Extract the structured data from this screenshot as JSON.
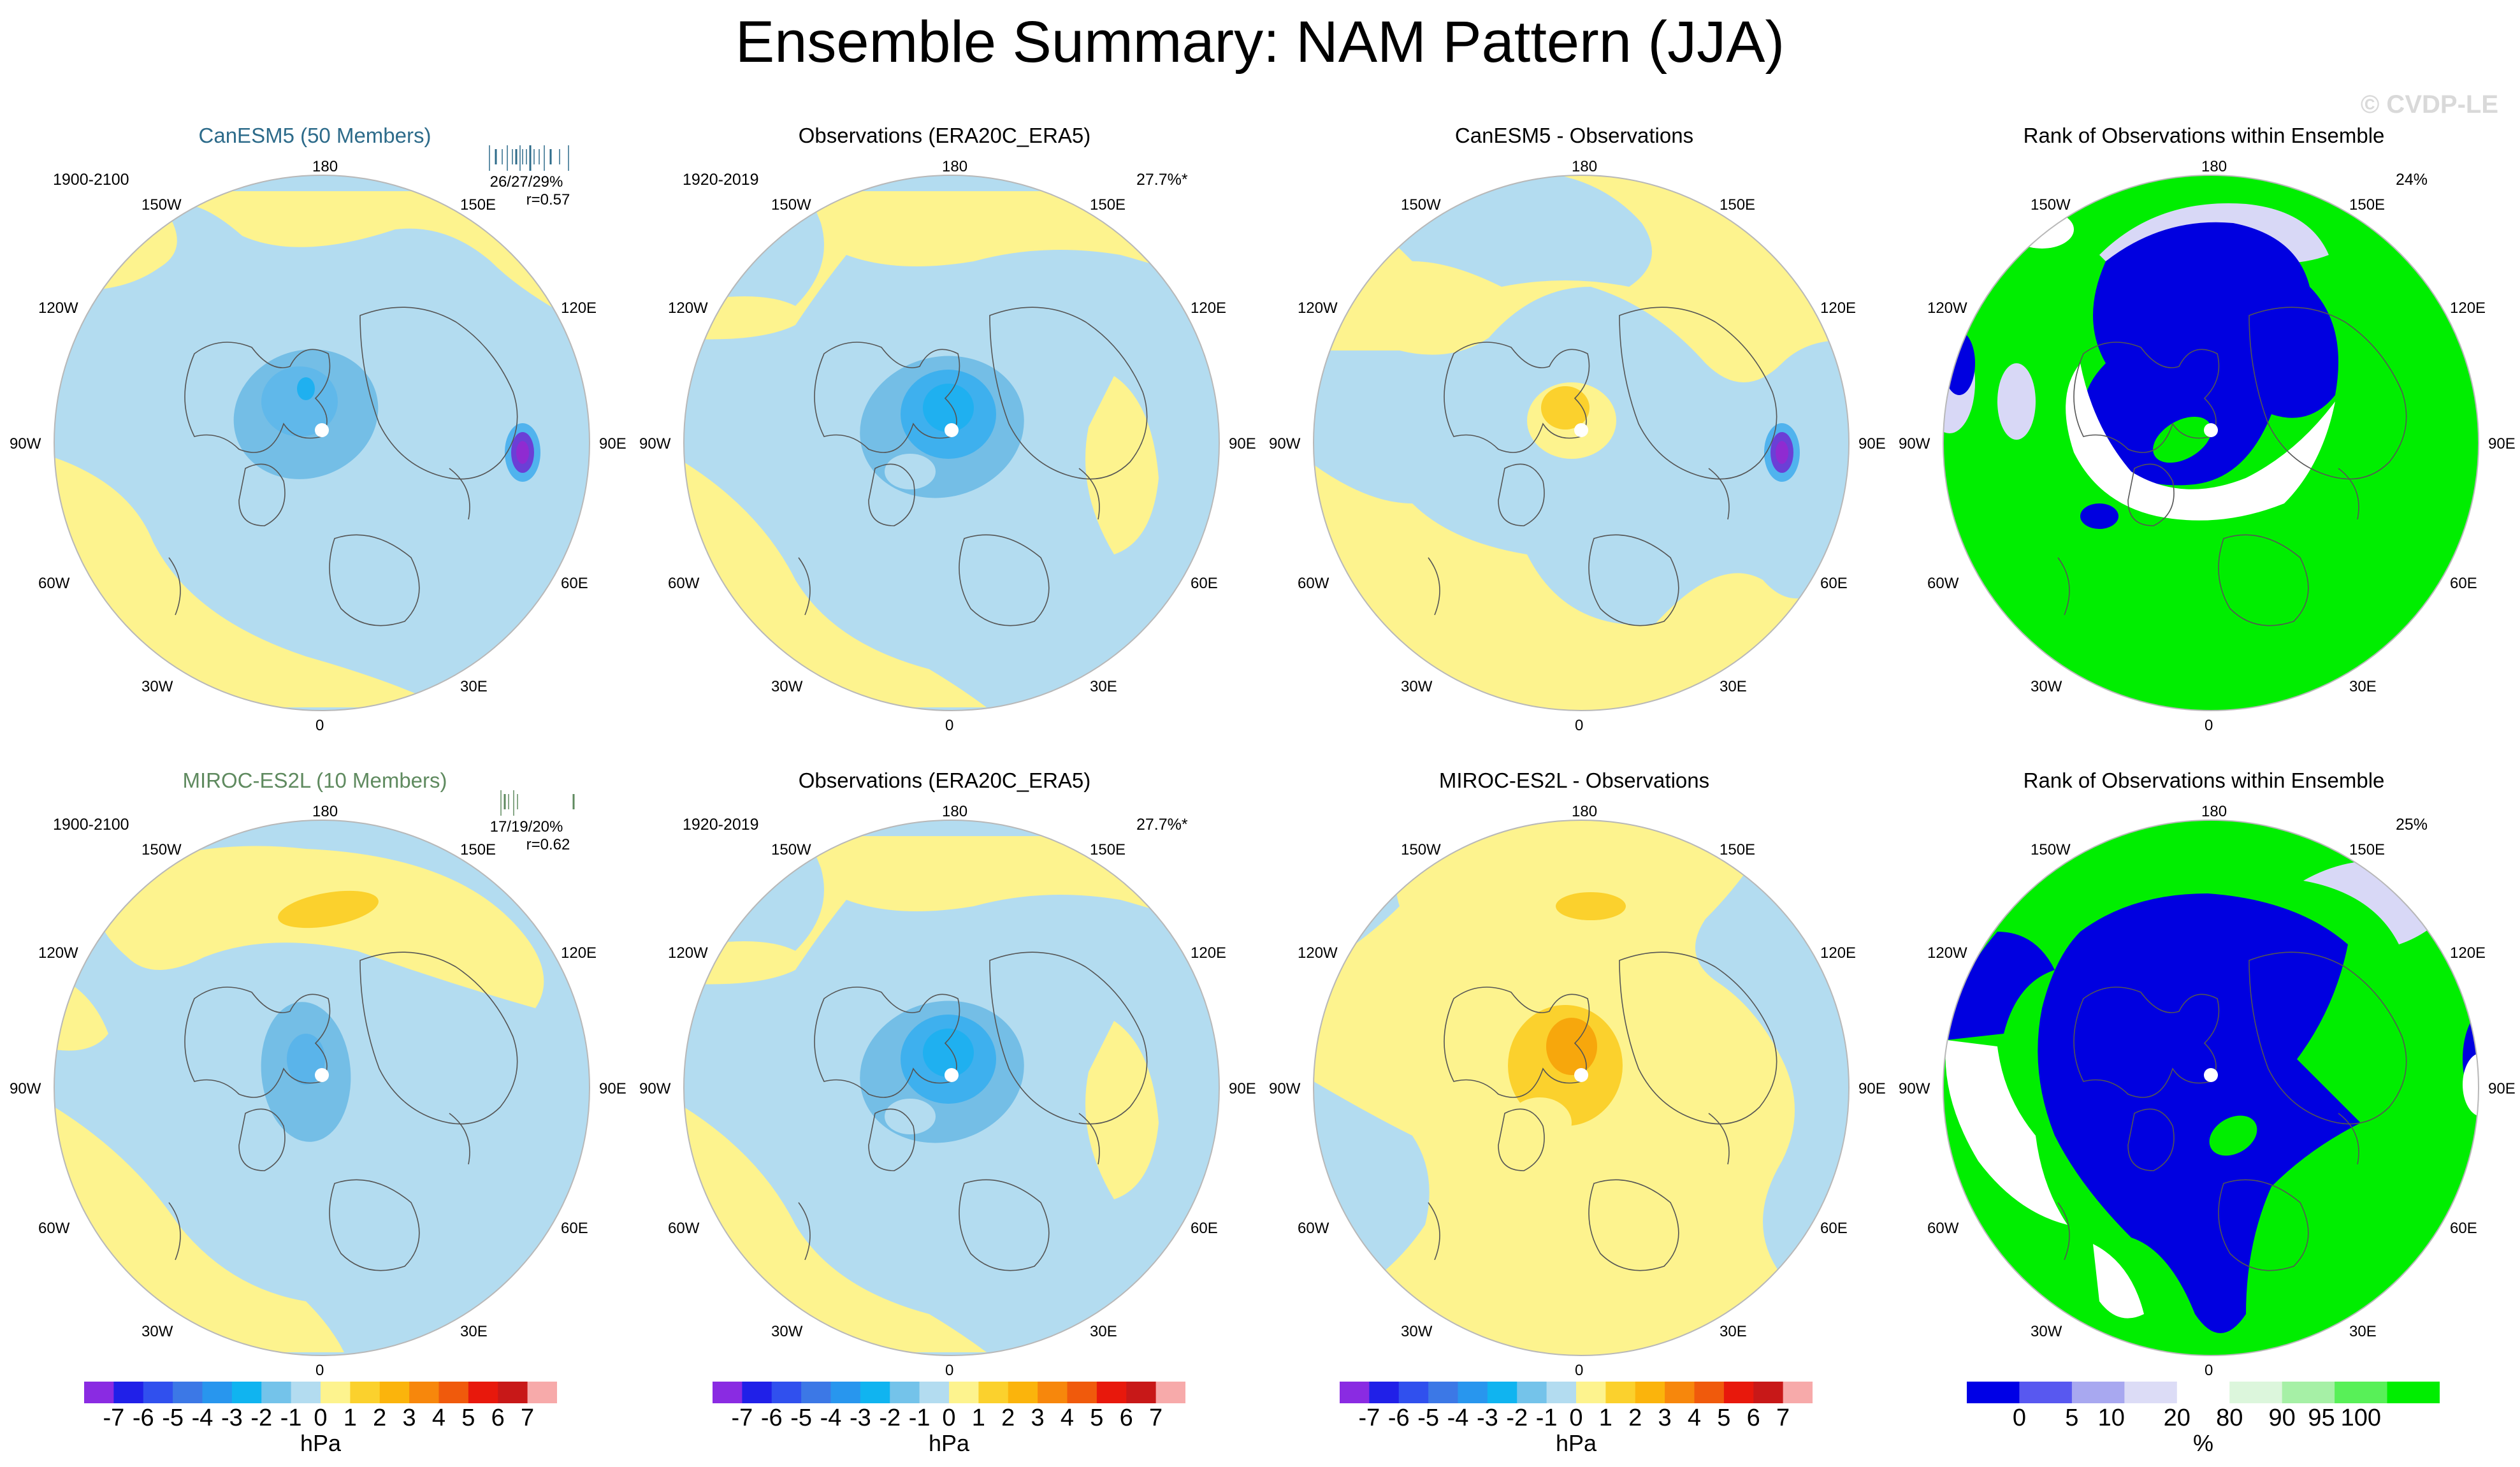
{
  "page": {
    "title": "Ensemble Summary: NAM Pattern (JJA)",
    "watermark": "© CVDP-LE"
  },
  "grid_labels": {
    "top": "180",
    "bottom": "0",
    "left": "90W",
    "right": "90E",
    "upper_left_outer": "120W",
    "upper_left_inner": "150W",
    "upper_right_inner": "150E",
    "upper_right_outer": "120E",
    "lower_left_outer": "60W",
    "lower_left_inner": "30W",
    "lower_right_inner": "30E",
    "lower_right_outer": "60E"
  },
  "colors": {
    "pos1": "#fdf38e",
    "pos2": "#fbd12d",
    "pos3": "#f7a70c",
    "neg1": "#b3dcf0",
    "neg2": "#74bee6",
    "neg3": "#50b3ee",
    "neg4": "#1fb0f0",
    "deep1": "#6b3fd6",
    "deep2": "#8f2bd1",
    "rank_green": "#00ee00",
    "rank_blue": "#0000e0",
    "rank_pale": "#d8d8f6",
    "rank_white": "#ffffff"
  },
  "chart_data": [
    {
      "type": "heatmap",
      "panel": "canesm5-mean",
      "title": "CanESM5 (50 Members)",
      "title_color": "#2d6b8a",
      "period": "1900-2100",
      "stat_line1": "26/27/29%",
      "stat_line2": "r=0.57",
      "units": "hPa"
    },
    {
      "type": "heatmap",
      "panel": "obs-top",
      "title": "Observations (ERA20C_ERA5)",
      "period": "1920-2019",
      "pct_label": "27.7%*",
      "units": "hPa"
    },
    {
      "type": "heatmap",
      "panel": "canesm5-minus-obs",
      "title": "CanESM5 - Observations",
      "units": "hPa"
    },
    {
      "type": "heatmap",
      "panel": "rank-top",
      "title": "Rank of Observations within Ensemble",
      "pct_label": "24%",
      "units": "%"
    },
    {
      "type": "heatmap",
      "panel": "miroc-mean",
      "title": "MIROC-ES2L (10 Members)",
      "title_color": "#5f8a5f",
      "period": "1900-2100",
      "stat_line1": "17/19/20%",
      "stat_line2": "r=0.62",
      "units": "hPa"
    },
    {
      "type": "heatmap",
      "panel": "obs-bottom",
      "title": "Observations (ERA20C_ERA5)",
      "period": "1920-2019",
      "pct_label": "27.7%*",
      "units": "hPa"
    },
    {
      "type": "heatmap",
      "panel": "miroc-minus-obs",
      "title": "MIROC-ES2L - Observations",
      "units": "hPa"
    },
    {
      "type": "heatmap",
      "panel": "rank-bottom",
      "title": "Rank of Observations within Ensemble",
      "pct_label": "25%",
      "units": "%"
    }
  ],
  "colorbar": {
    "unit": "hPa",
    "labels": [
      "-7",
      "-6",
      "-5",
      "-4",
      "-3",
      "-2",
      "-1",
      "0",
      "1",
      "2",
      "3",
      "4",
      "5",
      "6",
      "7"
    ],
    "colors": [
      "#8a2be2",
      "#2020e8",
      "#3050ee",
      "#3c78e6",
      "#2896ee",
      "#10b4f0",
      "#74c3ea",
      "#b3dcf0",
      "#fdf38e",
      "#fbd12d",
      "#fbb40c",
      "#f7870c",
      "#f05a0c",
      "#e8180c",
      "#c81818",
      "#f7aaaa"
    ]
  },
  "rank_colorbar": {
    "unit": "%",
    "labels": [
      "0",
      "5",
      "10",
      "20",
      "80",
      "90",
      "95",
      "100"
    ],
    "colors": [
      "#0000e6",
      "#5858f0",
      "#a8a8f0",
      "#dcdcf6",
      "#ffffff",
      "#dcf6dc",
      "#a6f0a6",
      "#58f058",
      "#00ee00"
    ]
  }
}
